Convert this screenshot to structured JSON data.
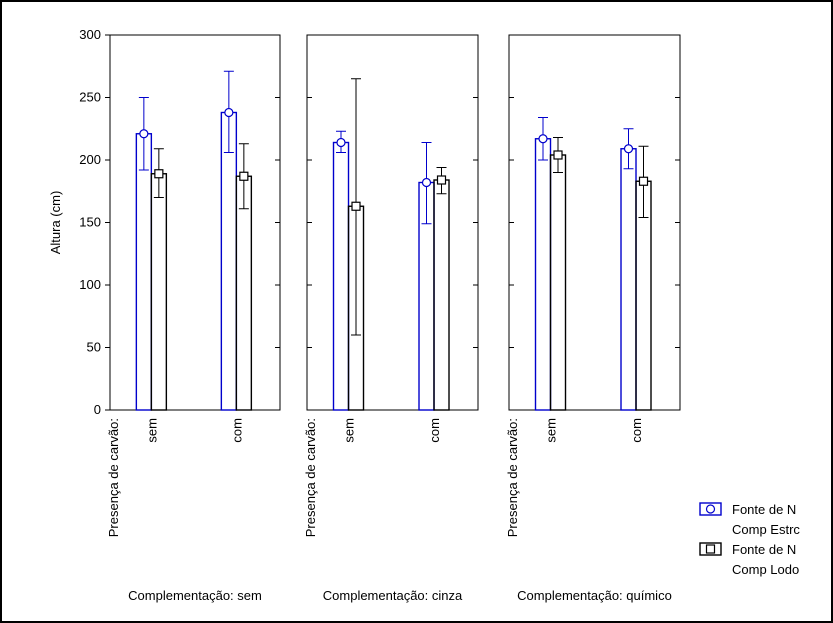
{
  "chart_data": {
    "type": "bar",
    "ylabel": "Altura (cm)",
    "ylim": [
      0,
      300
    ],
    "yticks": [
      0,
      50,
      100,
      150,
      200,
      250,
      300
    ],
    "grid": false,
    "legend_position": "bottom-right",
    "factor_label": "Presença de carvão:",
    "categories": [
      "sem",
      "com"
    ],
    "series": [
      {
        "name": "Fonte de N\nComp Estrc",
        "color": "#0000cc",
        "marker": "circle"
      },
      {
        "name": "Fonte de N\nComp Lodo",
        "color": "#000000",
        "marker": "square"
      }
    ],
    "legend": [
      {
        "line1": "Fonte de N",
        "line2": "Comp Estrc"
      },
      {
        "line1": "Fonte de N",
        "line2": "Comp Lodo"
      }
    ],
    "panels": [
      {
        "title": "Complementação: sem",
        "values": [
          [
            221,
            238
          ],
          [
            189,
            187
          ]
        ],
        "err_low": [
          [
            192,
            206
          ],
          [
            170,
            161
          ]
        ],
        "err_high": [
          [
            250,
            271
          ],
          [
            209,
            213
          ]
        ]
      },
      {
        "title": "Complementação: cinza",
        "values": [
          [
            214,
            182
          ],
          [
            163,
            184
          ]
        ],
        "err_low": [
          [
            206,
            149
          ],
          [
            60,
            173
          ]
        ],
        "err_high": [
          [
            223,
            214
          ],
          [
            265,
            194
          ]
        ]
      },
      {
        "title": "Complementação: químico",
        "values": [
          [
            217,
            209
          ],
          [
            204,
            183
          ]
        ],
        "err_low": [
          [
            200,
            193
          ],
          [
            190,
            154
          ]
        ],
        "err_high": [
          [
            234,
            225
          ],
          [
            218,
            211
          ]
        ]
      }
    ]
  }
}
